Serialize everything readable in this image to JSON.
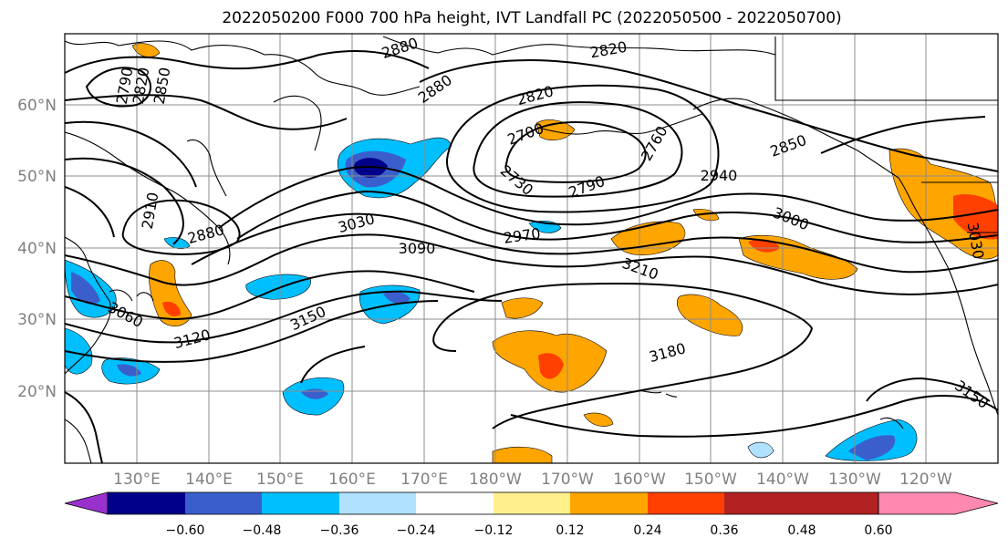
{
  "title": "2022050200 F000 700 hPa height, IVT Landfall PC (2022050500 - 2022050700)",
  "latitude_labels": [
    "60°N",
    "50°N",
    "40°N",
    "30°N",
    "20°N"
  ],
  "longitude_labels": [
    "130°E",
    "140°E",
    "150°E",
    "160°E",
    "170°E",
    "180°W",
    "170°W",
    "160°W",
    "150°W",
    "140°W",
    "130°W",
    "120°W"
  ],
  "colorbar": {
    "colors": [
      "#9932cc",
      "#00008b",
      "#3a5fcd",
      "#00bfff",
      "#b0e2ff",
      "#ffffff",
      "#fff08c",
      "#ffa500",
      "#ff4000",
      "#b22222",
      "#ff88b0"
    ],
    "tick_labels": [
      "−0.60",
      "−0.48",
      "−0.36",
      "−0.24",
      "−0.12",
      "0.12",
      "0.24",
      "0.36",
      "0.48",
      "0.60"
    ]
  },
  "contour_labels": [
    "2880",
    "2820",
    "2790",
    "2820",
    "2850",
    "2880",
    "2820",
    "2700",
    "2760",
    "2850",
    "2730",
    "2790",
    "2940",
    "2910",
    "2880",
    "3030",
    "2970",
    "3000",
    "3090",
    "3210",
    "3030",
    "3060",
    "3150",
    "3120",
    "3180",
    "3150"
  ]
}
